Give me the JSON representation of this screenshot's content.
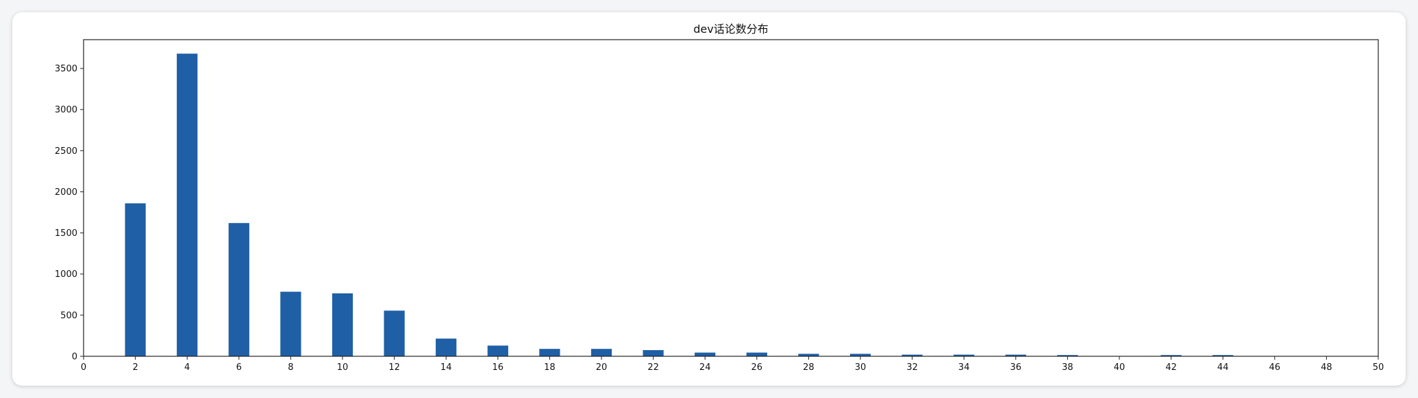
{
  "chart_data": {
    "type": "bar",
    "title": "dev话论数分布",
    "xlabel": "",
    "ylabel": "",
    "xlim": [
      0,
      50
    ],
    "ylim": [
      0,
      3850
    ],
    "x_ticks": [
      0,
      2,
      4,
      6,
      8,
      10,
      12,
      14,
      16,
      18,
      20,
      22,
      24,
      26,
      28,
      30,
      32,
      34,
      36,
      38,
      40,
      42,
      44,
      46,
      48,
      50
    ],
    "y_ticks": [
      0,
      500,
      1000,
      1500,
      2000,
      2500,
      3000,
      3500
    ],
    "bar_color": "#1f5fa6",
    "grid": false,
    "bars": [
      {
        "x": 2,
        "value": 1860
      },
      {
        "x": 4,
        "value": 3680
      },
      {
        "x": 6,
        "value": 1620
      },
      {
        "x": 8,
        "value": 785
      },
      {
        "x": 10,
        "value": 765
      },
      {
        "x": 12,
        "value": 555
      },
      {
        "x": 14,
        "value": 215
      },
      {
        "x": 16,
        "value": 130
      },
      {
        "x": 18,
        "value": 90
      },
      {
        "x": 20,
        "value": 90
      },
      {
        "x": 22,
        "value": 75
      },
      {
        "x": 24,
        "value": 45
      },
      {
        "x": 26,
        "value": 45
      },
      {
        "x": 28,
        "value": 30
      },
      {
        "x": 30,
        "value": 30
      },
      {
        "x": 32,
        "value": 20
      },
      {
        "x": 34,
        "value": 20
      },
      {
        "x": 36,
        "value": 20
      },
      {
        "x": 38,
        "value": 15
      },
      {
        "x": 42,
        "value": 15
      },
      {
        "x": 44,
        "value": 15
      }
    ]
  }
}
